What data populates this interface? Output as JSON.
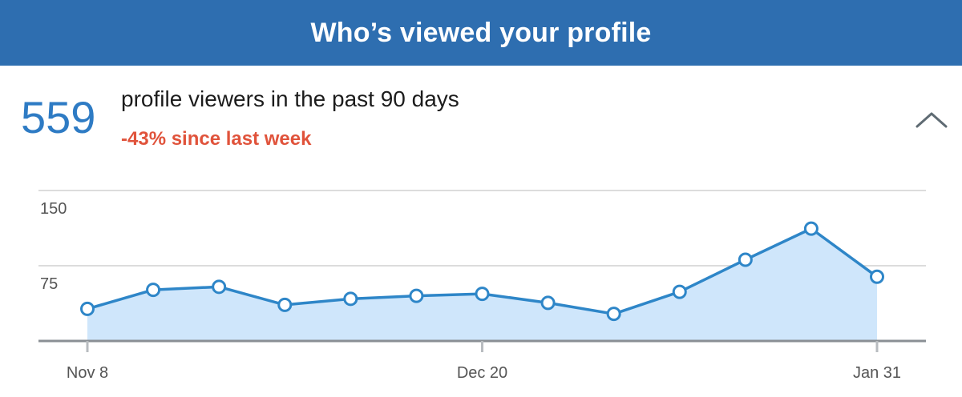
{
  "header": {
    "title": "Who’s viewed your profile"
  },
  "summary": {
    "count": "559",
    "label": "profile viewers in the past 90 days",
    "change": "-43% since last week"
  },
  "icons": {
    "collapse": "chevron-up-icon"
  },
  "colors": {
    "header_bg": "#2e6eb0",
    "accent": "#2e7bc4",
    "negative": "#e0533b",
    "area_fill": "#cfe6fb",
    "line": "#2e86c8"
  },
  "chart_data": {
    "type": "area",
    "title": "",
    "xlabel": "",
    "ylabel": "",
    "ylim": [
      0,
      150
    ],
    "y_ticks": [
      "150",
      "75"
    ],
    "x_tick_labels": [
      "Nov 8",
      "Dec 20",
      "Jan 31"
    ],
    "series": [
      {
        "values": [
          32,
          51,
          54,
          36,
          42,
          45,
          47,
          38,
          27,
          49,
          81,
          112,
          64
        ]
      }
    ]
  }
}
